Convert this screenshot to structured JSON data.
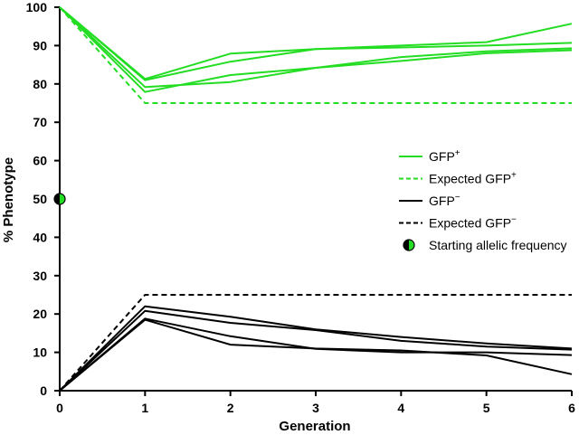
{
  "chart_data": {
    "type": "line",
    "title": "",
    "xlabel": "Generation",
    "ylabel": "% Phenotype",
    "xlim": [
      0,
      6
    ],
    "ylim": [
      0,
      100
    ],
    "x_ticks": [
      "0",
      "1",
      "2",
      "3",
      "4",
      "5",
      "6"
    ],
    "y_ticks": [
      "0",
      "10",
      "20",
      "30",
      "40",
      "50",
      "60",
      "70",
      "80",
      "90",
      "100"
    ],
    "x": [
      0,
      1,
      2,
      3,
      4,
      5,
      6
    ],
    "colors": {
      "gfp_plus": "#22dd22",
      "gfp_minus": "#000000"
    },
    "series": [
      {
        "name": "GFP+ replicate 1",
        "group": "GFP+",
        "style": "solid",
        "values": [
          100,
          81.3,
          87.9,
          89.1,
          90.0,
          90.9,
          95.7
        ]
      },
      {
        "name": "GFP+ replicate 2",
        "group": "GFP+",
        "style": "solid",
        "values": [
          100,
          81.0,
          85.8,
          89.1,
          89.5,
          90.0,
          90.7
        ]
      },
      {
        "name": "GFP+ replicate 3",
        "group": "GFP+",
        "style": "solid",
        "values": [
          100,
          79.2,
          80.5,
          84.2,
          87.0,
          88.5,
          89.3
        ]
      },
      {
        "name": "GFP+ replicate 4",
        "group": "GFP+",
        "style": "solid",
        "values": [
          100,
          77.9,
          82.3,
          84.2,
          86.0,
          88.0,
          88.8
        ]
      },
      {
        "name": "Expected GFP+",
        "group": "Expected GFP+",
        "style": "dashed",
        "values": [
          100,
          75,
          75,
          75,
          75,
          75,
          75
        ]
      },
      {
        "name": "GFP- replicate 1",
        "group": "GFP-",
        "style": "solid",
        "values": [
          0,
          22.0,
          19.3,
          16.0,
          14.0,
          12.3,
          11.0
        ]
      },
      {
        "name": "GFP- replicate 2",
        "group": "GFP-",
        "style": "solid",
        "values": [
          0,
          20.8,
          17.7,
          15.8,
          13.0,
          11.5,
          10.7
        ]
      },
      {
        "name": "GFP- replicate 3",
        "group": "GFP-",
        "style": "solid",
        "values": [
          0,
          18.8,
          14.2,
          10.9,
          10.0,
          10.0,
          9.3
        ]
      },
      {
        "name": "GFP- replicate 4",
        "group": "GFP-",
        "style": "solid",
        "values": [
          0,
          18.5,
          12.0,
          11.0,
          10.5,
          9.2,
          4.3
        ]
      },
      {
        "name": "Expected GFP-",
        "group": "Expected GFP-",
        "style": "dashed",
        "values": [
          0,
          25,
          25,
          25,
          25,
          25,
          25
        ]
      }
    ],
    "starting_point": {
      "label": "Starting allelic frequency",
      "x": 0,
      "y": 50
    },
    "legend": {
      "placement": "right-middle",
      "items": [
        {
          "key": "gfp_plus",
          "label": "GFP",
          "sup": "+",
          "style": "solid",
          "color": "#22dd22"
        },
        {
          "key": "exp_gfp_plus",
          "label": "Expected GFP",
          "sup": "+",
          "style": "dashed",
          "color": "#22dd22"
        },
        {
          "key": "gfp_minus",
          "label": "GFP",
          "sup": "−",
          "style": "solid",
          "color": "#000000"
        },
        {
          "key": "exp_gfp_minus",
          "label": "Expected GFP",
          "sup": "−",
          "style": "dashed",
          "color": "#000000"
        },
        {
          "key": "start",
          "label": "Starting allelic frequency",
          "sup": "",
          "style": "marker",
          "color": "#22dd22"
        }
      ]
    }
  }
}
